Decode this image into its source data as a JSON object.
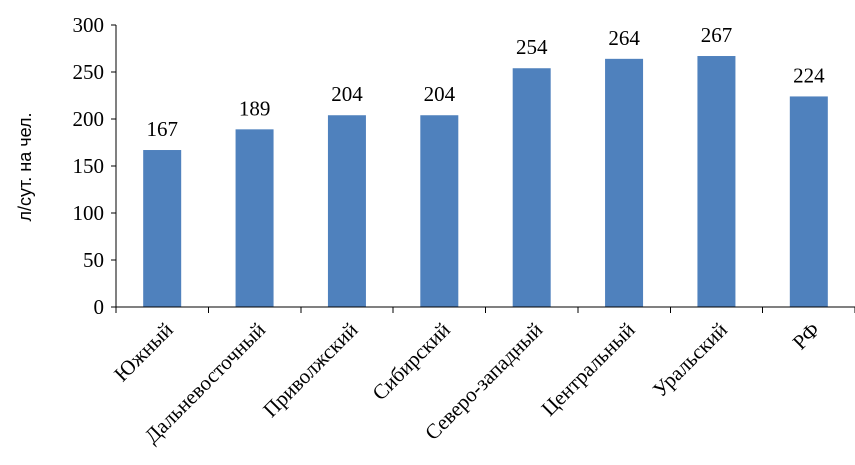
{
  "chart_data": {
    "type": "bar",
    "categories": [
      "Южный",
      "Дальневосточный",
      "Приволжский",
      "Сибирский",
      "Северо-западный",
      "Центральный",
      "Уральский",
      "РФ"
    ],
    "values": [
      167,
      189,
      204,
      204,
      254,
      264,
      267,
      224
    ],
    "data_labels": [
      "167",
      "189",
      "204",
      "204",
      "254",
      "264",
      "267",
      "224"
    ],
    "title": "",
    "xlabel": "",
    "ylabel": "л/сут. на чел.",
    "ylim": [
      0,
      300
    ],
    "yticks": [
      "0",
      "50",
      "100",
      "150",
      "200",
      "250",
      "300"
    ],
    "grid": false,
    "legend": "none",
    "colors": {
      "bar": "#4f81bd",
      "axis": "#000000",
      "text": "#000000"
    }
  }
}
